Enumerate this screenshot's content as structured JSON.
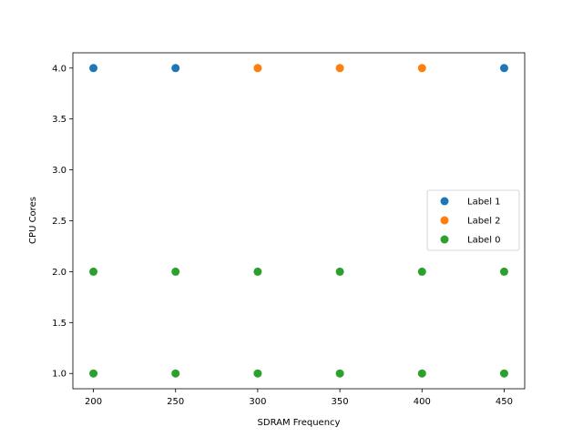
{
  "chart_data": {
    "type": "scatter",
    "title": "",
    "xlabel": "SDRAM Frequency",
    "ylabel": "CPU Cores",
    "xlim": [
      187.5,
      462.5
    ],
    "ylim": [
      0.85,
      4.15
    ],
    "xticks": [
      200,
      250,
      300,
      350,
      400,
      450
    ],
    "yticks": [
      1.0,
      1.5,
      2.0,
      2.5,
      3.0,
      3.5,
      4.0
    ],
    "grid": false,
    "legend_position": "center-right",
    "series": [
      {
        "name": "Label 1",
        "color": "#1f77b4",
        "points": [
          [
            200,
            4
          ],
          [
            250,
            4
          ],
          [
            450,
            4
          ]
        ]
      },
      {
        "name": "Label 2",
        "color": "#ff7f0e",
        "points": [
          [
            300,
            4
          ],
          [
            350,
            4
          ],
          [
            400,
            4
          ]
        ]
      },
      {
        "name": "Label 0",
        "color": "#2ca02c",
        "points": [
          [
            200,
            2
          ],
          [
            250,
            2
          ],
          [
            300,
            2
          ],
          [
            350,
            2
          ],
          [
            400,
            2
          ],
          [
            450,
            2
          ],
          [
            200,
            1
          ],
          [
            250,
            1
          ],
          [
            300,
            1
          ],
          [
            350,
            1
          ],
          [
            400,
            1
          ],
          [
            450,
            1
          ]
        ]
      }
    ]
  }
}
